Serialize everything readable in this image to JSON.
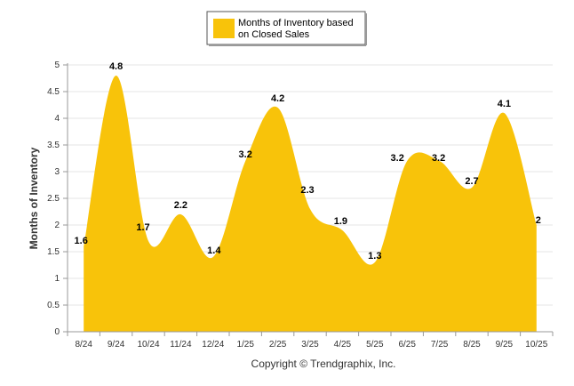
{
  "chart_data": {
    "type": "area",
    "categories": [
      "8/24",
      "9/24",
      "10/24",
      "11/24",
      "12/24",
      "1/25",
      "2/25",
      "3/25",
      "4/25",
      "5/25",
      "6/25",
      "7/25",
      "8/25",
      "9/25",
      "10/25"
    ],
    "series": [
      {
        "name": "Months of Inventory based on Closed Sales",
        "legend_lines": [
          "Months of Inventory based",
          "on Closed Sales"
        ],
        "values": [
          1.6,
          4.8,
          1.7,
          2.2,
          1.4,
          3.2,
          4.2,
          2.3,
          1.9,
          1.3,
          3.2,
          3.2,
          2.7,
          4.1,
          2
        ],
        "data_labels": [
          "1.6",
          "4.8",
          "1.7",
          "2.2",
          "1.4",
          "3.2",
          "4.2",
          "2.3",
          "1.9",
          "1.3",
          "3.2",
          "3.2",
          "2.7",
          "4.1",
          "2"
        ],
        "color": "#F8C30A"
      }
    ],
    "ylabel": "Months of Inventory",
    "ylim": [
      0,
      5
    ],
    "yticks": [
      0,
      0.5,
      1,
      1.5,
      2,
      2.5,
      3,
      3.5,
      4,
      4.5,
      5
    ],
    "ytick_labels": [
      "0",
      "0.5",
      "1",
      "1.5",
      "2",
      "2.5",
      "3",
      "3.5",
      "4",
      "4.5",
      "5"
    ],
    "grid": true,
    "legend_position": "top-center"
  },
  "footer": "Copyright © Trendgraphix, Inc."
}
